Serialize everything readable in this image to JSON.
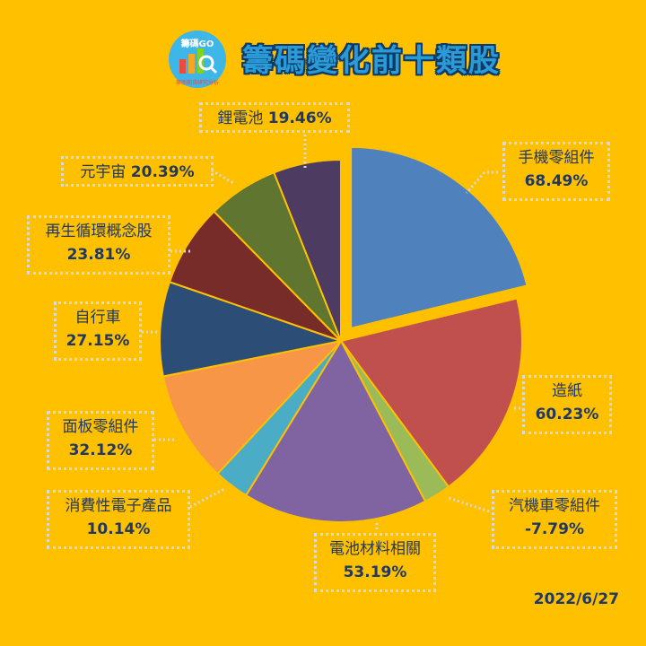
{
  "logo": {
    "text": "籌碼GO",
    "caption": "華南期貨研究分析"
  },
  "title": "籌碼變化前十類股",
  "date": "2022/6/27",
  "colors": {
    "background": "#FFC000",
    "title": "#2A9BD7",
    "label_text": "#1F3864"
  },
  "chart_data": {
    "type": "pie",
    "title": "籌碼變化前十類股",
    "slices": [
      {
        "name": "手機零組件",
        "value_label": "68.49%",
        "value": 68.49,
        "color": "#4F81BD",
        "exploded": true
      },
      {
        "name": "造紙",
        "value_label": "60.23%",
        "value": 60.23,
        "color": "#C0504D"
      },
      {
        "name": "汽機車零組件",
        "value_label": "-7.79%",
        "value": -7.79,
        "color": "#9BBB59"
      },
      {
        "name": "電池材料相關",
        "value_label": "53.19%",
        "value": 53.19,
        "color": "#8064A2"
      },
      {
        "name": "消費性電子產品",
        "value_label": "10.14%",
        "value": 10.14,
        "color": "#4BACC6"
      },
      {
        "name": "面板零組件",
        "value_label": "32.12%",
        "value": 32.12,
        "color": "#F79646"
      },
      {
        "name": "自行車",
        "value_label": "27.15%",
        "value": 27.15,
        "color": "#2C4D75"
      },
      {
        "name": "再生循環概念股",
        "value_label": "23.81%",
        "value": 23.81,
        "color": "#772C2A"
      },
      {
        "name": "元宇宙",
        "value_label": "20.39%",
        "value": 20.39,
        "color": "#5F7530"
      },
      {
        "name": "鋰電池",
        "value_label": "19.46%",
        "value": 19.46,
        "color": "#4D3B62"
      }
    ]
  }
}
